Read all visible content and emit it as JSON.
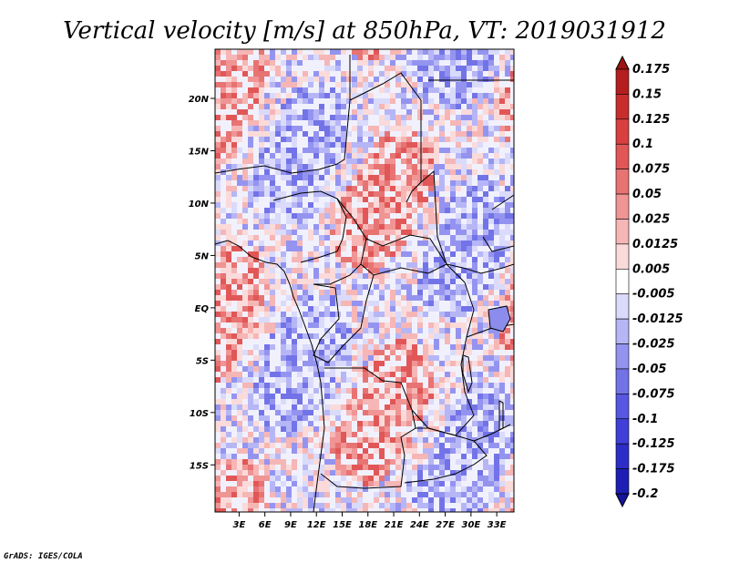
{
  "chart_data": {
    "type": "heatmap",
    "title": "Vertical velocity [m/s] at 850hPa, VT: 2019031912",
    "x_ticks": [
      "3E",
      "6E",
      "9E",
      "12E",
      "15E",
      "18E",
      "21E",
      "24E",
      "27E",
      "30E",
      "33E"
    ],
    "x_tick_values": [
      3,
      6,
      9,
      12,
      15,
      18,
      21,
      24,
      27,
      30,
      33
    ],
    "y_ticks": [
      "20N",
      "15N",
      "10N",
      "5N",
      "EQ",
      "5S",
      "10S",
      "15S"
    ],
    "y_tick_values": [
      20,
      15,
      10,
      5,
      0,
      -5,
      -10,
      -15
    ],
    "xlim": [
      0.2,
      35
    ],
    "ylim": [
      -19.5,
      24.7
    ],
    "colorbar": {
      "labels": [
        "0.175",
        "0.15",
        "0.125",
        "0.1",
        "0.075",
        "0.05",
        "0.025",
        "0.0125",
        "0.005",
        "-0.005",
        "-0.0125",
        "-0.025",
        "-0.05",
        "-0.075",
        "-0.1",
        "-0.125",
        "-0.175",
        "-0.2"
      ],
      "colors": [
        "#9e1414",
        "#b41e1e",
        "#c82d2d",
        "#d84040",
        "#e15757",
        "#e87373",
        "#f09494",
        "#f6b6b6",
        "#fbdada",
        "#ffffff",
        "#dadafb",
        "#b6b6f6",
        "#9494f0",
        "#7373e8",
        "#5757e1",
        "#4040d8",
        "#2d2dc8",
        "#1e1eb4",
        "#14149e"
      ]
    }
  },
  "footer": {
    "credit": "GrADS: IGES/COLA"
  }
}
